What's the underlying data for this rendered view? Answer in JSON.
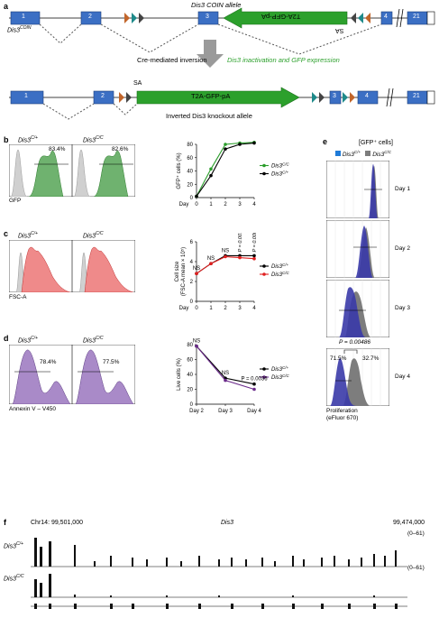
{
  "panels": {
    "a": "a",
    "b": "b",
    "c": "c",
    "d": "d",
    "e": "e",
    "f": "f"
  },
  "panel_a": {
    "coin_title": "Dis3 COIN allele",
    "coin_label": "Dis3",
    "coin_label_sup": "COIN",
    "cassette": "T2A-GFP-pA",
    "sa": "SA",
    "exons_top": [
      "1",
      "2",
      "3",
      "4",
      "21"
    ],
    "arrow_text": "Cre-mediated inversion",
    "arrow_text_green": "Dis3 inactivation and GFP expression",
    "inverted_cassette": "T2A-GFP-pA",
    "inverted_sa": "SA",
    "inverted_caption": "Inverted Dis3 knockout allele",
    "exons_bottom": [
      "1",
      "2",
      "3",
      "4",
      "21"
    ]
  },
  "panel_b": {
    "hist1_title": "Dis3",
    "hist1_sup": "C/+",
    "hist1_pct": "83.4%",
    "hist2_title": "Dis3",
    "hist2_sup": "C/C",
    "hist2_pct": "82.6%",
    "xaxis": "GFP"
  },
  "panel_c": {
    "hist1_title": "Dis3",
    "hist1_sup": "C/+",
    "hist2_title": "Dis3",
    "hist2_sup": "C/C",
    "xaxis": "FSC-A"
  },
  "panel_d": {
    "hist1_title": "Dis3",
    "hist1_sup": "C/+",
    "hist1_pct": "78.4%",
    "hist2_title": "Dis3",
    "hist2_sup": "C/C",
    "hist2_pct": "77.5%",
    "xaxis": "Annexin V – V450"
  },
  "panel_e": {
    "header": "[GFP⁺ cells]",
    "legend1": "Dis3",
    "legend1_sup": "C/+",
    "legend2": "Dis3",
    "legend2_sup": "C/C",
    "days": [
      "Day 1",
      "Day 2",
      "Day 3",
      "Day 4"
    ],
    "pvalue": "P = 0.00486",
    "pct_left": "71.5%",
    "pct_right": "32.7%",
    "xaxis1": "Proliferation",
    "xaxis2": "(eFluor 670)",
    "colors": {
      "c_plus": "#3a3aa8",
      "c_c": "#7d7d7d"
    }
  },
  "panel_f": {
    "chrom_left": "Chr14: 99,501,000",
    "gene": "Dis3",
    "chrom_right": "99,474,000",
    "track1_label": "Dis3",
    "track1_sup": "C/+",
    "track1_range": "(0–61)",
    "track2_label": "Dis3",
    "track2_sup": "C/C",
    "track2_range": "(0–61)"
  },
  "chart_data": [
    {
      "type": "line",
      "panel": "b",
      "x": [
        0,
        1,
        2,
        3,
        4
      ],
      "xticklabels": [
        "0",
        "1",
        "2",
        "3",
        "4"
      ],
      "xlabel": "Day",
      "ylabel": "GFP⁺ cells (%)",
      "ylim": [
        0,
        80
      ],
      "yticks": [
        0,
        20,
        40,
        60,
        80
      ],
      "legend": "right",
      "series": [
        {
          "name": "Dis3",
          "sup": "C/C",
          "color": "#2a9d2a",
          "values": [
            2,
            43,
            80,
            82,
            83
          ]
        },
        {
          "name": "Dis3",
          "sup": "C/+",
          "color": "#000000",
          "values": [
            2,
            33,
            73,
            80,
            82
          ]
        }
      ],
      "annotations": []
    },
    {
      "type": "line",
      "panel": "c",
      "x": [
        0,
        1,
        2,
        3,
        4
      ],
      "xticklabels": [
        "0",
        "1",
        "2",
        "3",
        "4"
      ],
      "xlabel": "Day",
      "ylabel": "Cell size",
      "ylabel2": "(FSC-A mean × 10⁵)",
      "ylim": [
        0,
        6
      ],
      "yticks": [
        0,
        2,
        4,
        6
      ],
      "legend": "right",
      "series": [
        {
          "name": "Dis3",
          "sup": "C/+",
          "color": "#000000",
          "values": [
            2.8,
            3.8,
            4.6,
            4.6,
            4.6
          ]
        },
        {
          "name": "Dis3",
          "sup": "C/C",
          "color": "#e02020",
          "values": [
            2.8,
            3.8,
            4.5,
            4.4,
            4.3
          ]
        }
      ],
      "annotations": [
        "NS",
        "NS",
        "NS",
        "P = 0.0071",
        "P = 0.00087"
      ]
    },
    {
      "type": "line",
      "panel": "d",
      "x": [
        0,
        1,
        2
      ],
      "xticklabels": [
        "Day 2",
        "Day 3",
        "Day 4"
      ],
      "xlabel": "",
      "ylabel": "Live cells (%)",
      "ylim": [
        0,
        80
      ],
      "yticks": [
        0,
        20,
        40,
        60,
        80
      ],
      "legend": "right",
      "series": [
        {
          "name": "Dis3",
          "sup": "C/+",
          "color": "#000000",
          "values": [
            78,
            35,
            27
          ]
        },
        {
          "name": "Dis3",
          "sup": "C/C",
          "color": "#6a2a8a",
          "values": [
            78,
            32,
            20
          ]
        }
      ],
      "annotations": [
        "NS",
        "NS",
        "P = 0.0036"
      ]
    }
  ]
}
